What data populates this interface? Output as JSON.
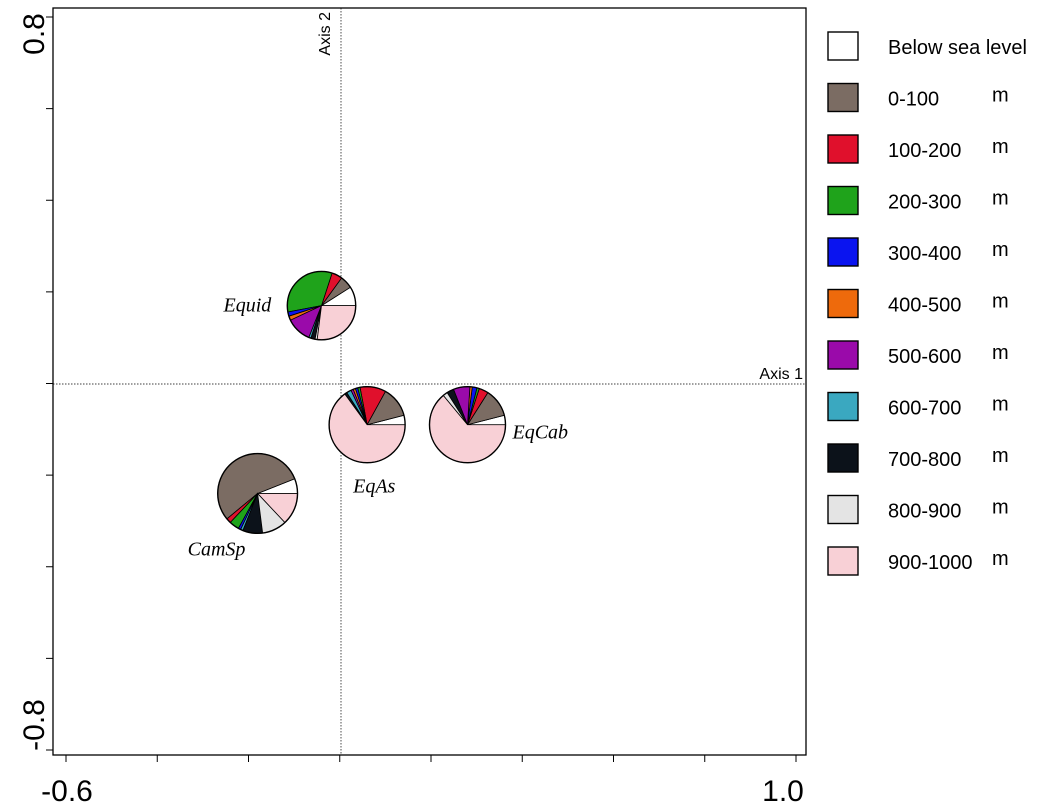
{
  "chart_data": {
    "type": "scatter",
    "subtype": "pie-markers",
    "x_axis": {
      "range": [
        -0.6,
        1.0
      ],
      "tick_labels": [
        "-0.6",
        "1.0"
      ],
      "name": "Axis 1"
    },
    "y_axis": {
      "range": [
        -0.8,
        0.8
      ],
      "tick_labels": [
        "0.8",
        "-0.8"
      ],
      "name": "Axis 2"
    },
    "legend": {
      "placement": "right",
      "items": [
        {
          "label": "Below sea level",
          "unit": "",
          "color": "#ffffff"
        },
        {
          "label": "0-100",
          "unit": "m",
          "color": "#7b6c63"
        },
        {
          "label": "100-200",
          "unit": "m",
          "color": "#e0102c"
        },
        {
          "label": "200-300",
          "unit": "m",
          "color": "#1fa31b"
        },
        {
          "label": "300-400",
          "unit": "m",
          "color": "#0a14f0"
        },
        {
          "label": "400-500",
          "unit": "m",
          "color": "#ee6a0c"
        },
        {
          "label": "500-600",
          "unit": "m",
          "color": "#9a0aaa"
        },
        {
          "label": "600-700",
          "unit": "m",
          "color": "#3aa8c0"
        },
        {
          "label": "700-800",
          "unit": "m",
          "color": "#0c121a"
        },
        {
          "label": "800-900",
          "unit": "m",
          "color": "#e4e4e4"
        },
        {
          "label": "900-1000",
          "unit": "m",
          "color": "#f8d0d6"
        }
      ]
    },
    "pies": [
      {
        "label": "Equid",
        "x": -0.04,
        "y": 0.17,
        "size": 0.9,
        "fractions": [
          0.09,
          0.06,
          0.05,
          0.33,
          0.02,
          0.02,
          0.12,
          0.01,
          0.02,
          0.01,
          0.27
        ]
      },
      {
        "label": "EqAs",
        "x": 0.06,
        "y": -0.09,
        "size": 1.0,
        "fractions": [
          0.04,
          0.13,
          0.11,
          0.01,
          0.01,
          0.01,
          0.01,
          0.02,
          0.01,
          0.0,
          0.65
        ]
      },
      {
        "label": "EqCab",
        "x": 0.28,
        "y": -0.09,
        "size": 1.0,
        "fractions": [
          0.04,
          0.12,
          0.04,
          0.01,
          0.02,
          0.01,
          0.07,
          0.0,
          0.03,
          0.02,
          0.64
        ]
      },
      {
        "label": "CamSp",
        "x": -0.18,
        "y": -0.24,
        "size": 1.05,
        "fractions": [
          0.06,
          0.55,
          0.02,
          0.04,
          0.01,
          0.0,
          0.0,
          0.01,
          0.08,
          0.1,
          0.13
        ]
      }
    ]
  }
}
